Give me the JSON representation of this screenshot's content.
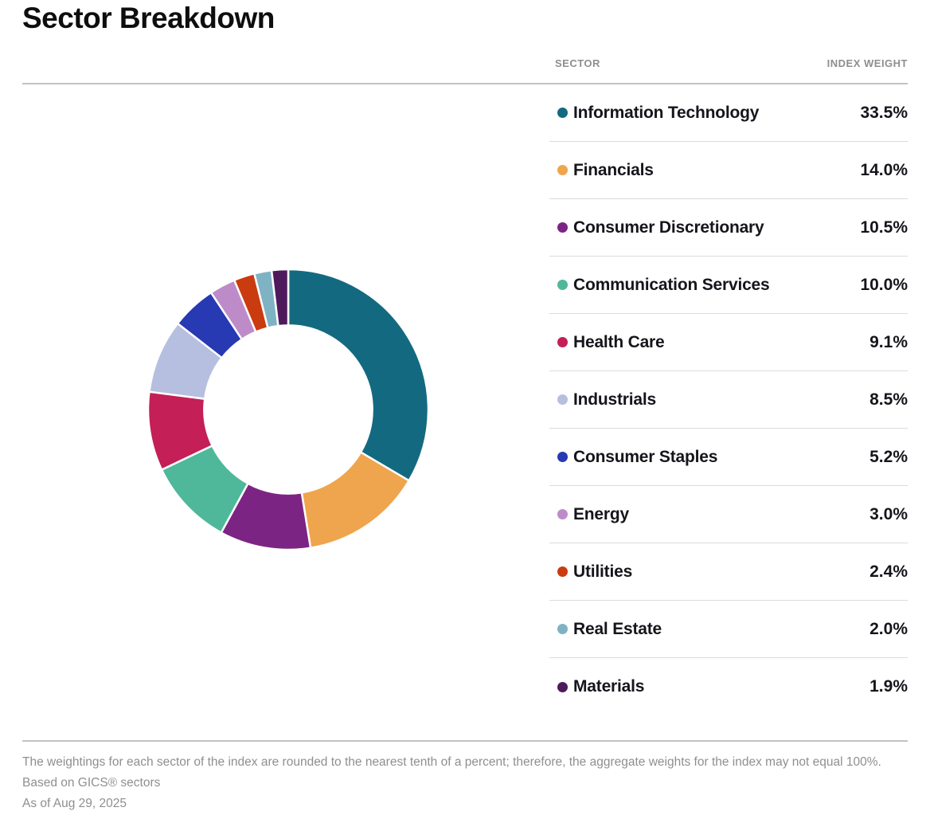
{
  "page": {
    "title": "Sector Breakdown"
  },
  "table": {
    "headers": {
      "sector": "SECTOR",
      "weight": "INDEX WEIGHT"
    },
    "rows": [
      {
        "label": "Information Technology",
        "weight": "33.5%",
        "color": "#136a80"
      },
      {
        "label": "Financials",
        "weight": "14.0%",
        "color": "#efa54d"
      },
      {
        "label": "Consumer Discretionary",
        "weight": "10.5%",
        "color": "#7c2483"
      },
      {
        "label": "Communication Services",
        "weight": "10.0%",
        "color": "#4fb89a"
      },
      {
        "label": "Health Care",
        "weight": "9.1%",
        "color": "#c41f56"
      },
      {
        "label": "Industrials",
        "weight": "8.5%",
        "color": "#b7bfe0"
      },
      {
        "label": "Consumer Staples",
        "weight": "5.2%",
        "color": "#2739b3"
      },
      {
        "label": "Energy",
        "weight": "3.0%",
        "color": "#bd8cc8"
      },
      {
        "label": "Utilities",
        "weight": "2.4%",
        "color": "#ca3b0f"
      },
      {
        "label": "Real Estate",
        "weight": "2.0%",
        "color": "#7fb3c3"
      },
      {
        "label": "Materials",
        "weight": "1.9%",
        "color": "#4f1a5c"
      }
    ]
  },
  "chart_data": {
    "type": "pie",
    "subtype": "donut",
    "title": "Sector Breakdown",
    "categories": [
      "Information Technology",
      "Financials",
      "Consumer Discretionary",
      "Communication Services",
      "Health Care",
      "Industrials",
      "Consumer Staples",
      "Energy",
      "Utilities",
      "Real Estate",
      "Materials"
    ],
    "values": [
      33.5,
      14.0,
      10.5,
      10.0,
      9.1,
      8.5,
      5.2,
      3.0,
      2.4,
      2.0,
      1.9
    ],
    "value_labels": [
      "33.5%",
      "14.0%",
      "10.5%",
      "10.0%",
      "9.1%",
      "8.5%",
      "5.2%",
      "3.0%",
      "2.4%",
      "2.0%",
      "1.9%"
    ],
    "colors": [
      "#136a80",
      "#efa54d",
      "#7c2483",
      "#4fb89a",
      "#c41f56",
      "#b7bfe0",
      "#2739b3",
      "#bd8cc8",
      "#ca3b0f",
      "#7fb3c3",
      "#4f1a5c"
    ],
    "start_angle_deg": -90,
    "direction": "clockwise",
    "inner_radius_ratio": 0.6,
    "outer_radius_px": 176,
    "segment_gap_color": "#ffffff",
    "legend_position": "right-table"
  },
  "footer": {
    "note_rounding": "The weightings for each sector of the index are rounded to the nearest tenth of a percent; therefore, the aggregate weights for the index may not equal 100%.",
    "note_gics": "Based on GICS® sectors",
    "note_asof": "As of Aug 29, 2025"
  }
}
